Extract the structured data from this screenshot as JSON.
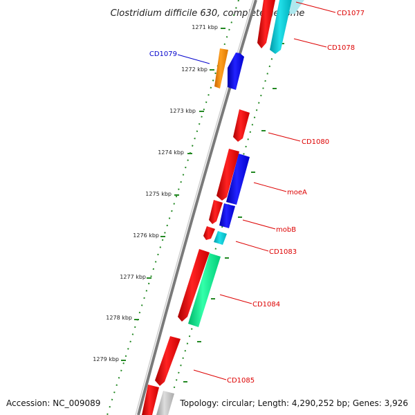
{
  "title": "Clostridium difficile 630, complete genome",
  "footer": {
    "accession": "Accession: NC_009089",
    "topology": "Topology: circular; Length: 4,290,252 bp; Genes: 3,926"
  },
  "ticks": [
    "1271 kbp",
    "1272 kbp",
    "1273 kbp",
    "1274 kbp",
    "1275 kbp",
    "1276 kbp",
    "1277 kbp",
    "1278 kbp",
    "1279 kbp"
  ],
  "gene_labels": {
    "cd1077": "CD1077",
    "cd1078": "CD1078",
    "cd1079": "CD1079",
    "cd1080": "CD1080",
    "moea": "moeA",
    "mobb": "mobB",
    "cd1083": "CD1083",
    "cd1084": "CD1084",
    "cd1085": "CD1085"
  },
  "colors": {
    "red": "#ee0000",
    "blue": "#0000ee",
    "cyan": "#00c8d2",
    "orange": "#ff8c00",
    "green": "#00e88a",
    "gray": "#bbbbbb",
    "backbone": "#888888",
    "tick": "#228822"
  }
}
